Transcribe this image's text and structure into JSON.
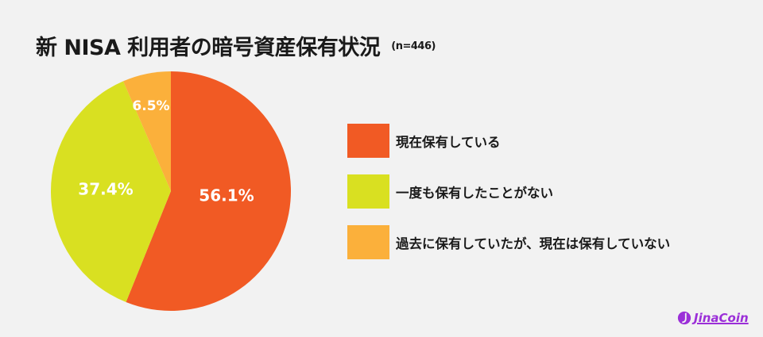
{
  "header": {
    "title": "新 NISA 利用者の暗号資産保有状況",
    "sample": "(n=446)"
  },
  "chart_data": {
    "type": "pie",
    "title": "新 NISA 利用者の暗号資産保有状況",
    "subtitle": "(n=446)",
    "categories": [
      "現在保有している",
      "一度も保有したことがない",
      "過去に保有していたが、現在は保有していない"
    ],
    "values": [
      56.1,
      37.4,
      6.5
    ],
    "labels": [
      "56.1%",
      "37.4%",
      "6.5%"
    ],
    "colors": [
      "#f15a24",
      "#d9e021",
      "#fbb03b"
    ],
    "start_angle": "12 o'clock",
    "direction": "clockwise",
    "legend_position": "right"
  },
  "legend": {
    "items": [
      {
        "label": "現在保有している",
        "color": "#f15a24"
      },
      {
        "label": "一度も保有したことがない",
        "color": "#d9e021"
      },
      {
        "label": "過去に保有していたが、現在は保有していない",
        "color": "#fbb03b"
      }
    ]
  },
  "brand": {
    "name": "JinaCoin",
    "color": "#9b2fd8"
  }
}
